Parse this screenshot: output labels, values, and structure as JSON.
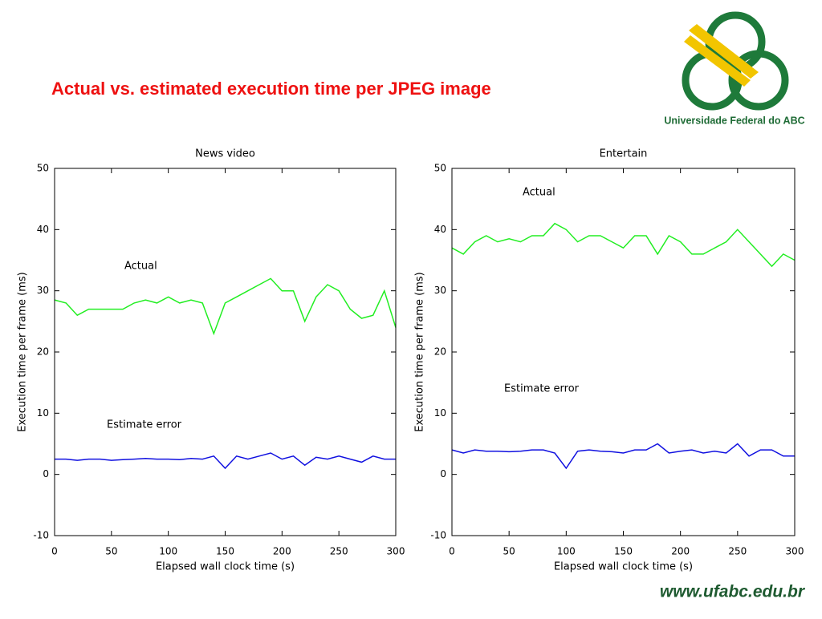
{
  "header": {
    "title": "Actual vs. estimated execution time per JPEG image"
  },
  "logo": {
    "text": "Universidade Federal do ABC"
  },
  "footer": {
    "url": "www.ufabc.edu.br"
  },
  "chart_data": [
    {
      "type": "line",
      "title": "News video",
      "x_label": "Elapsed wall clock time (s)",
      "y_label": "Execution time per frame (ms)",
      "x": [
        0,
        10,
        20,
        30,
        40,
        50,
        60,
        70,
        80,
        90,
        100,
        110,
        120,
        130,
        140,
        150,
        160,
        170,
        180,
        190,
        200,
        210,
        220,
        230,
        240,
        250,
        260,
        270,
        280,
        290,
        300
      ],
      "series": [
        {
          "name": "Actual",
          "color": "#22ee22",
          "values": [
            28.5,
            28,
            26,
            27,
            27,
            27,
            27,
            28,
            28.5,
            28,
            29,
            28,
            28.5,
            28,
            23,
            28,
            29,
            30,
            31,
            32,
            30,
            30,
            25,
            29,
            31,
            30,
            27,
            25.5,
            26,
            30,
            24
          ]
        },
        {
          "name": "Estimate error",
          "color": "#1010e0",
          "values": [
            2.5,
            2.5,
            2.3,
            2.5,
            2.5,
            2.3,
            2.4,
            2.5,
            2.6,
            2.5,
            2.5,
            2.4,
            2.6,
            2.5,
            3,
            1,
            3,
            2.5,
            3,
            3.5,
            2.5,
            3,
            1.5,
            2.8,
            2.5,
            3,
            2.5,
            2,
            3,
            2.5,
            2.5
          ]
        }
      ],
      "xlim": [
        0,
        300
      ],
      "ylim": [
        -10,
        50
      ],
      "xticks": [
        0,
        50,
        100,
        150,
        200,
        250,
        300
      ],
      "yticks": [
        -10,
        0,
        10,
        20,
        30,
        40,
        50
      ]
    },
    {
      "type": "line",
      "title": "Entertain",
      "x_label": "Elapsed wall clock time (s)",
      "y_label": "Execution time per frame (ms)",
      "x": [
        0,
        10,
        20,
        30,
        40,
        50,
        60,
        70,
        80,
        90,
        100,
        110,
        120,
        130,
        140,
        150,
        160,
        170,
        180,
        190,
        200,
        210,
        220,
        230,
        240,
        250,
        260,
        270,
        280,
        290,
        300
      ],
      "series": [
        {
          "name": "Actual",
          "color": "#22ee22",
          "values": [
            37,
            36,
            38,
            39,
            38,
            38.5,
            38,
            39,
            39,
            41,
            40,
            38,
            39,
            39,
            38,
            37,
            39,
            39,
            36,
            39,
            38,
            36,
            36,
            37,
            38,
            40,
            38,
            36,
            34,
            36,
            35
          ]
        },
        {
          "name": "Estimate error",
          "color": "#1010e0",
          "values": [
            4,
            3.5,
            4,
            3.8,
            3.8,
            3.7,
            3.8,
            4,
            4,
            3.5,
            1,
            3.8,
            4,
            3.8,
            3.7,
            3.5,
            4,
            4,
            5,
            3.5,
            3.8,
            4,
            3.5,
            3.8,
            3.5,
            5,
            3,
            4,
            4,
            3,
            3
          ]
        }
      ],
      "xlim": [
        0,
        300
      ],
      "ylim": [
        -10,
        50
      ],
      "xticks": [
        0,
        50,
        100,
        150,
        200,
        250,
        300
      ],
      "yticks": [
        -10,
        0,
        10,
        20,
        30,
        40,
        50
      ]
    }
  ]
}
